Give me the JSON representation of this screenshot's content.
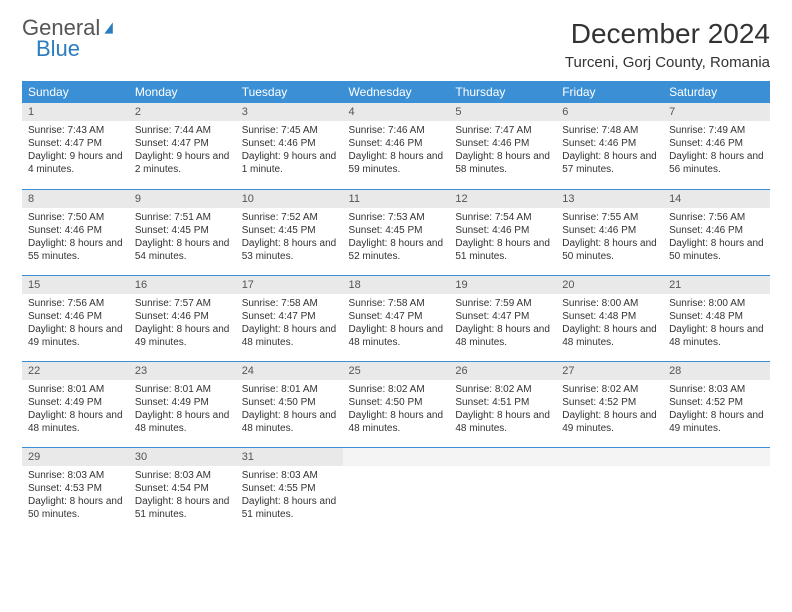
{
  "logo": {
    "word1": "General",
    "word2": "Blue"
  },
  "title": "December 2024",
  "location": "Turceni, Gorj County, Romania",
  "header_bg": "#3b8fd4",
  "weekdays": [
    "Sunday",
    "Monday",
    "Tuesday",
    "Wednesday",
    "Thursday",
    "Friday",
    "Saturday"
  ],
  "days": [
    {
      "n": "1",
      "sr": "7:43 AM",
      "ss": "4:47 PM",
      "d": "9 hours and 4 minutes."
    },
    {
      "n": "2",
      "sr": "7:44 AM",
      "ss": "4:47 PM",
      "d": "9 hours and 2 minutes."
    },
    {
      "n": "3",
      "sr": "7:45 AM",
      "ss": "4:46 PM",
      "d": "9 hours and 1 minute."
    },
    {
      "n": "4",
      "sr": "7:46 AM",
      "ss": "4:46 PM",
      "d": "8 hours and 59 minutes."
    },
    {
      "n": "5",
      "sr": "7:47 AM",
      "ss": "4:46 PM",
      "d": "8 hours and 58 minutes."
    },
    {
      "n": "6",
      "sr": "7:48 AM",
      "ss": "4:46 PM",
      "d": "8 hours and 57 minutes."
    },
    {
      "n": "7",
      "sr": "7:49 AM",
      "ss": "4:46 PM",
      "d": "8 hours and 56 minutes."
    },
    {
      "n": "8",
      "sr": "7:50 AM",
      "ss": "4:46 PM",
      "d": "8 hours and 55 minutes."
    },
    {
      "n": "9",
      "sr": "7:51 AM",
      "ss": "4:45 PM",
      "d": "8 hours and 54 minutes."
    },
    {
      "n": "10",
      "sr": "7:52 AM",
      "ss": "4:45 PM",
      "d": "8 hours and 53 minutes."
    },
    {
      "n": "11",
      "sr": "7:53 AM",
      "ss": "4:45 PM",
      "d": "8 hours and 52 minutes."
    },
    {
      "n": "12",
      "sr": "7:54 AM",
      "ss": "4:46 PM",
      "d": "8 hours and 51 minutes."
    },
    {
      "n": "13",
      "sr": "7:55 AM",
      "ss": "4:46 PM",
      "d": "8 hours and 50 minutes."
    },
    {
      "n": "14",
      "sr": "7:56 AM",
      "ss": "4:46 PM",
      "d": "8 hours and 50 minutes."
    },
    {
      "n": "15",
      "sr": "7:56 AM",
      "ss": "4:46 PM",
      "d": "8 hours and 49 minutes."
    },
    {
      "n": "16",
      "sr": "7:57 AM",
      "ss": "4:46 PM",
      "d": "8 hours and 49 minutes."
    },
    {
      "n": "17",
      "sr": "7:58 AM",
      "ss": "4:47 PM",
      "d": "8 hours and 48 minutes."
    },
    {
      "n": "18",
      "sr": "7:58 AM",
      "ss": "4:47 PM",
      "d": "8 hours and 48 minutes."
    },
    {
      "n": "19",
      "sr": "7:59 AM",
      "ss": "4:47 PM",
      "d": "8 hours and 48 minutes."
    },
    {
      "n": "20",
      "sr": "8:00 AM",
      "ss": "4:48 PM",
      "d": "8 hours and 48 minutes."
    },
    {
      "n": "21",
      "sr": "8:00 AM",
      "ss": "4:48 PM",
      "d": "8 hours and 48 minutes."
    },
    {
      "n": "22",
      "sr": "8:01 AM",
      "ss": "4:49 PM",
      "d": "8 hours and 48 minutes."
    },
    {
      "n": "23",
      "sr": "8:01 AM",
      "ss": "4:49 PM",
      "d": "8 hours and 48 minutes."
    },
    {
      "n": "24",
      "sr": "8:01 AM",
      "ss": "4:50 PM",
      "d": "8 hours and 48 minutes."
    },
    {
      "n": "25",
      "sr": "8:02 AM",
      "ss": "4:50 PM",
      "d": "8 hours and 48 minutes."
    },
    {
      "n": "26",
      "sr": "8:02 AM",
      "ss": "4:51 PM",
      "d": "8 hours and 48 minutes."
    },
    {
      "n": "27",
      "sr": "8:02 AM",
      "ss": "4:52 PM",
      "d": "8 hours and 49 minutes."
    },
    {
      "n": "28",
      "sr": "8:03 AM",
      "ss": "4:52 PM",
      "d": "8 hours and 49 minutes."
    },
    {
      "n": "29",
      "sr": "8:03 AM",
      "ss": "4:53 PM",
      "d": "8 hours and 50 minutes."
    },
    {
      "n": "30",
      "sr": "8:03 AM",
      "ss": "4:54 PM",
      "d": "8 hours and 51 minutes."
    },
    {
      "n": "31",
      "sr": "8:03 AM",
      "ss": "4:55 PM",
      "d": "8 hours and 51 minutes."
    }
  ],
  "labels": {
    "sunrise": "Sunrise: ",
    "sunset": "Sunset: ",
    "daylight": "Daylight: "
  }
}
